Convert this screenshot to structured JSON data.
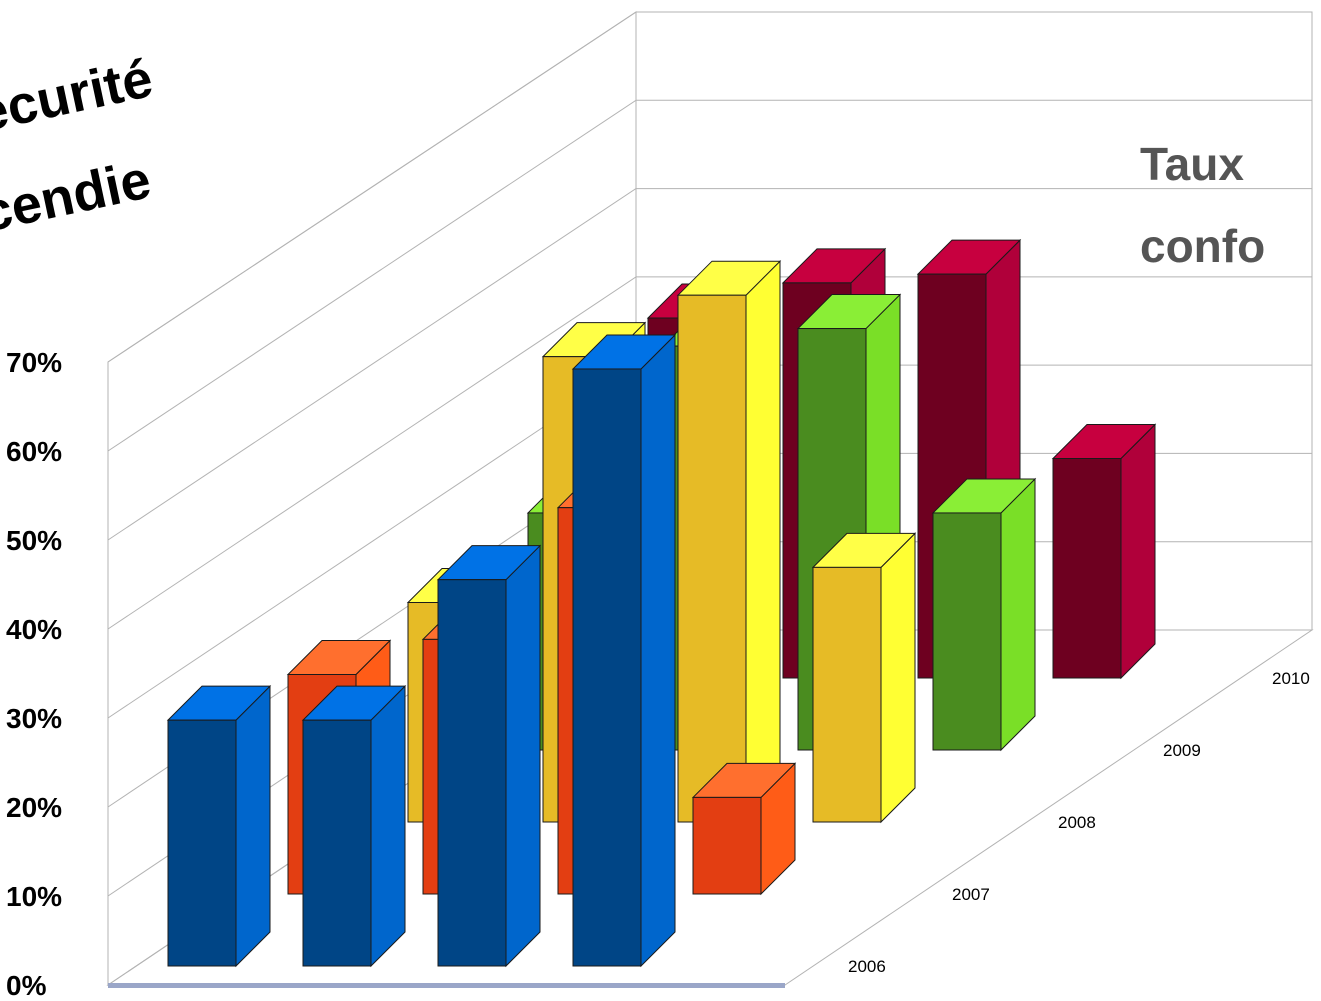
{
  "slide": {
    "title_line1": "écurité",
    "title_line2": "cendie"
  },
  "chart_data": {
    "type": "bar",
    "subtype": "3d-deep-column",
    "title_line1": "Taux",
    "title_line2": "confo",
    "y_ticks": [
      "0%",
      "10%",
      "20%",
      "30%",
      "40%",
      "50%",
      "60%",
      "70%"
    ],
    "ylim": [
      0,
      0.7
    ],
    "grid": true,
    "legend": "none",
    "rows": [
      "2006",
      "2007",
      "2008",
      "2009",
      "2010"
    ],
    "columns": 4,
    "series": [
      {
        "name": "2006",
        "values": [
          0.28,
          0.28,
          0.44,
          0.68
        ]
      },
      {
        "name": "2007",
        "values": [
          0.25,
          0.29,
          0.44,
          0.11
        ]
      },
      {
        "name": "2008",
        "values": [
          0.25,
          0.53,
          0.6,
          0.29
        ]
      },
      {
        "name": "2009",
        "values": [
          0.27,
          0.46,
          0.48,
          0.27
        ]
      },
      {
        "name": "2010",
        "values": [
          0.41,
          0.45,
          0.46,
          0.25
        ]
      }
    ],
    "colors": {
      "2006": {
        "front": "#004586",
        "side": "#0066cc",
        "top": "#0072e6"
      },
      "2007": {
        "front": "#e33e12",
        "side": "#ff5c17",
        "top": "#ff6f2e"
      },
      "2008": {
        "front": "#e6bb26",
        "side": "#ffff33",
        "top": "#ffff47"
      },
      "2009": {
        "front": "#4a8c1f",
        "side": "#7adf27",
        "top": "#8aee36"
      },
      "2010": {
        "front": "#6e0020",
        "side": "#b0003a",
        "top": "#c7003f"
      }
    }
  }
}
